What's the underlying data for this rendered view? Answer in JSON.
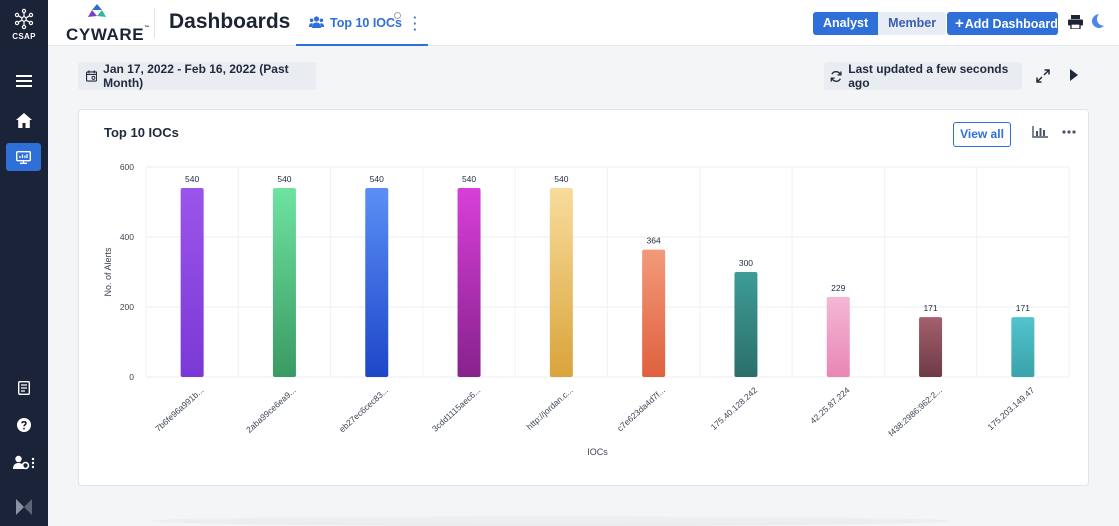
{
  "sidebar": {
    "logo_label": "CSAP",
    "items": [
      {
        "icon": "menu-icon"
      },
      {
        "icon": "home-icon"
      },
      {
        "icon": "dashboard-icon",
        "active": true
      },
      {
        "icon": "report-icon"
      },
      {
        "icon": "help-icon"
      },
      {
        "icon": "user-settings-icon"
      },
      {
        "icon": "cyware-mark-icon"
      }
    ]
  },
  "header": {
    "brand": "CYWARE",
    "brand_tm": "™",
    "title": "Dashboards",
    "tab_label": "Top 10 IOCs",
    "view_options": [
      "Analyst",
      "Member"
    ],
    "active_view": "Analyst",
    "add_button": "Add Dashboard"
  },
  "filters": {
    "date_range": "Jan 17, 2022 - Feb 16, 2022 (Past Month)",
    "last_updated": "Last updated a few seconds ago"
  },
  "widget": {
    "title": "Top 10 IOCs",
    "view_all": "View all"
  },
  "colors": {
    "accent": "#2e6fd8",
    "sidebar": "#1a2338",
    "bars": [
      [
        "#9a55ea",
        "#7a38d6"
      ],
      [
        "#6ee3a0",
        "#3a9a63"
      ],
      [
        "#5b8ff5",
        "#1d46c9"
      ],
      [
        "#d83fd8",
        "#86228c"
      ],
      [
        "#f8dc9c",
        "#d9a43a"
      ],
      [
        "#f29a7a",
        "#e0603e"
      ],
      [
        "#3e9c96",
        "#2b6f6b"
      ],
      [
        "#f4b8d4",
        "#e886b6"
      ],
      [
        "#a4606e",
        "#6e3a46"
      ],
      [
        "#52c4cc",
        "#3aa2aa"
      ]
    ]
  },
  "chart_data": {
    "type": "bar",
    "title": "Top 10 IOCs",
    "xlabel": "IOCs",
    "ylabel": "No. of Alerts",
    "ylim": [
      0,
      600
    ],
    "yticks": [
      0,
      200,
      400,
      600
    ],
    "grid": true,
    "categories": [
      "7b6fe96a991b...",
      "2aba99ce6ea9...",
      "eb27ec6cec83...",
      "3cdd1115aec6...",
      "http://jordan.c...",
      "c7e623da4d7f...",
      "175.40.128.242",
      "42.25.87.224",
      "f438:2986:962:2...",
      "175.203.149.47"
    ],
    "values": [
      540,
      540,
      540,
      540,
      540,
      364,
      300,
      229,
      171,
      171
    ]
  }
}
